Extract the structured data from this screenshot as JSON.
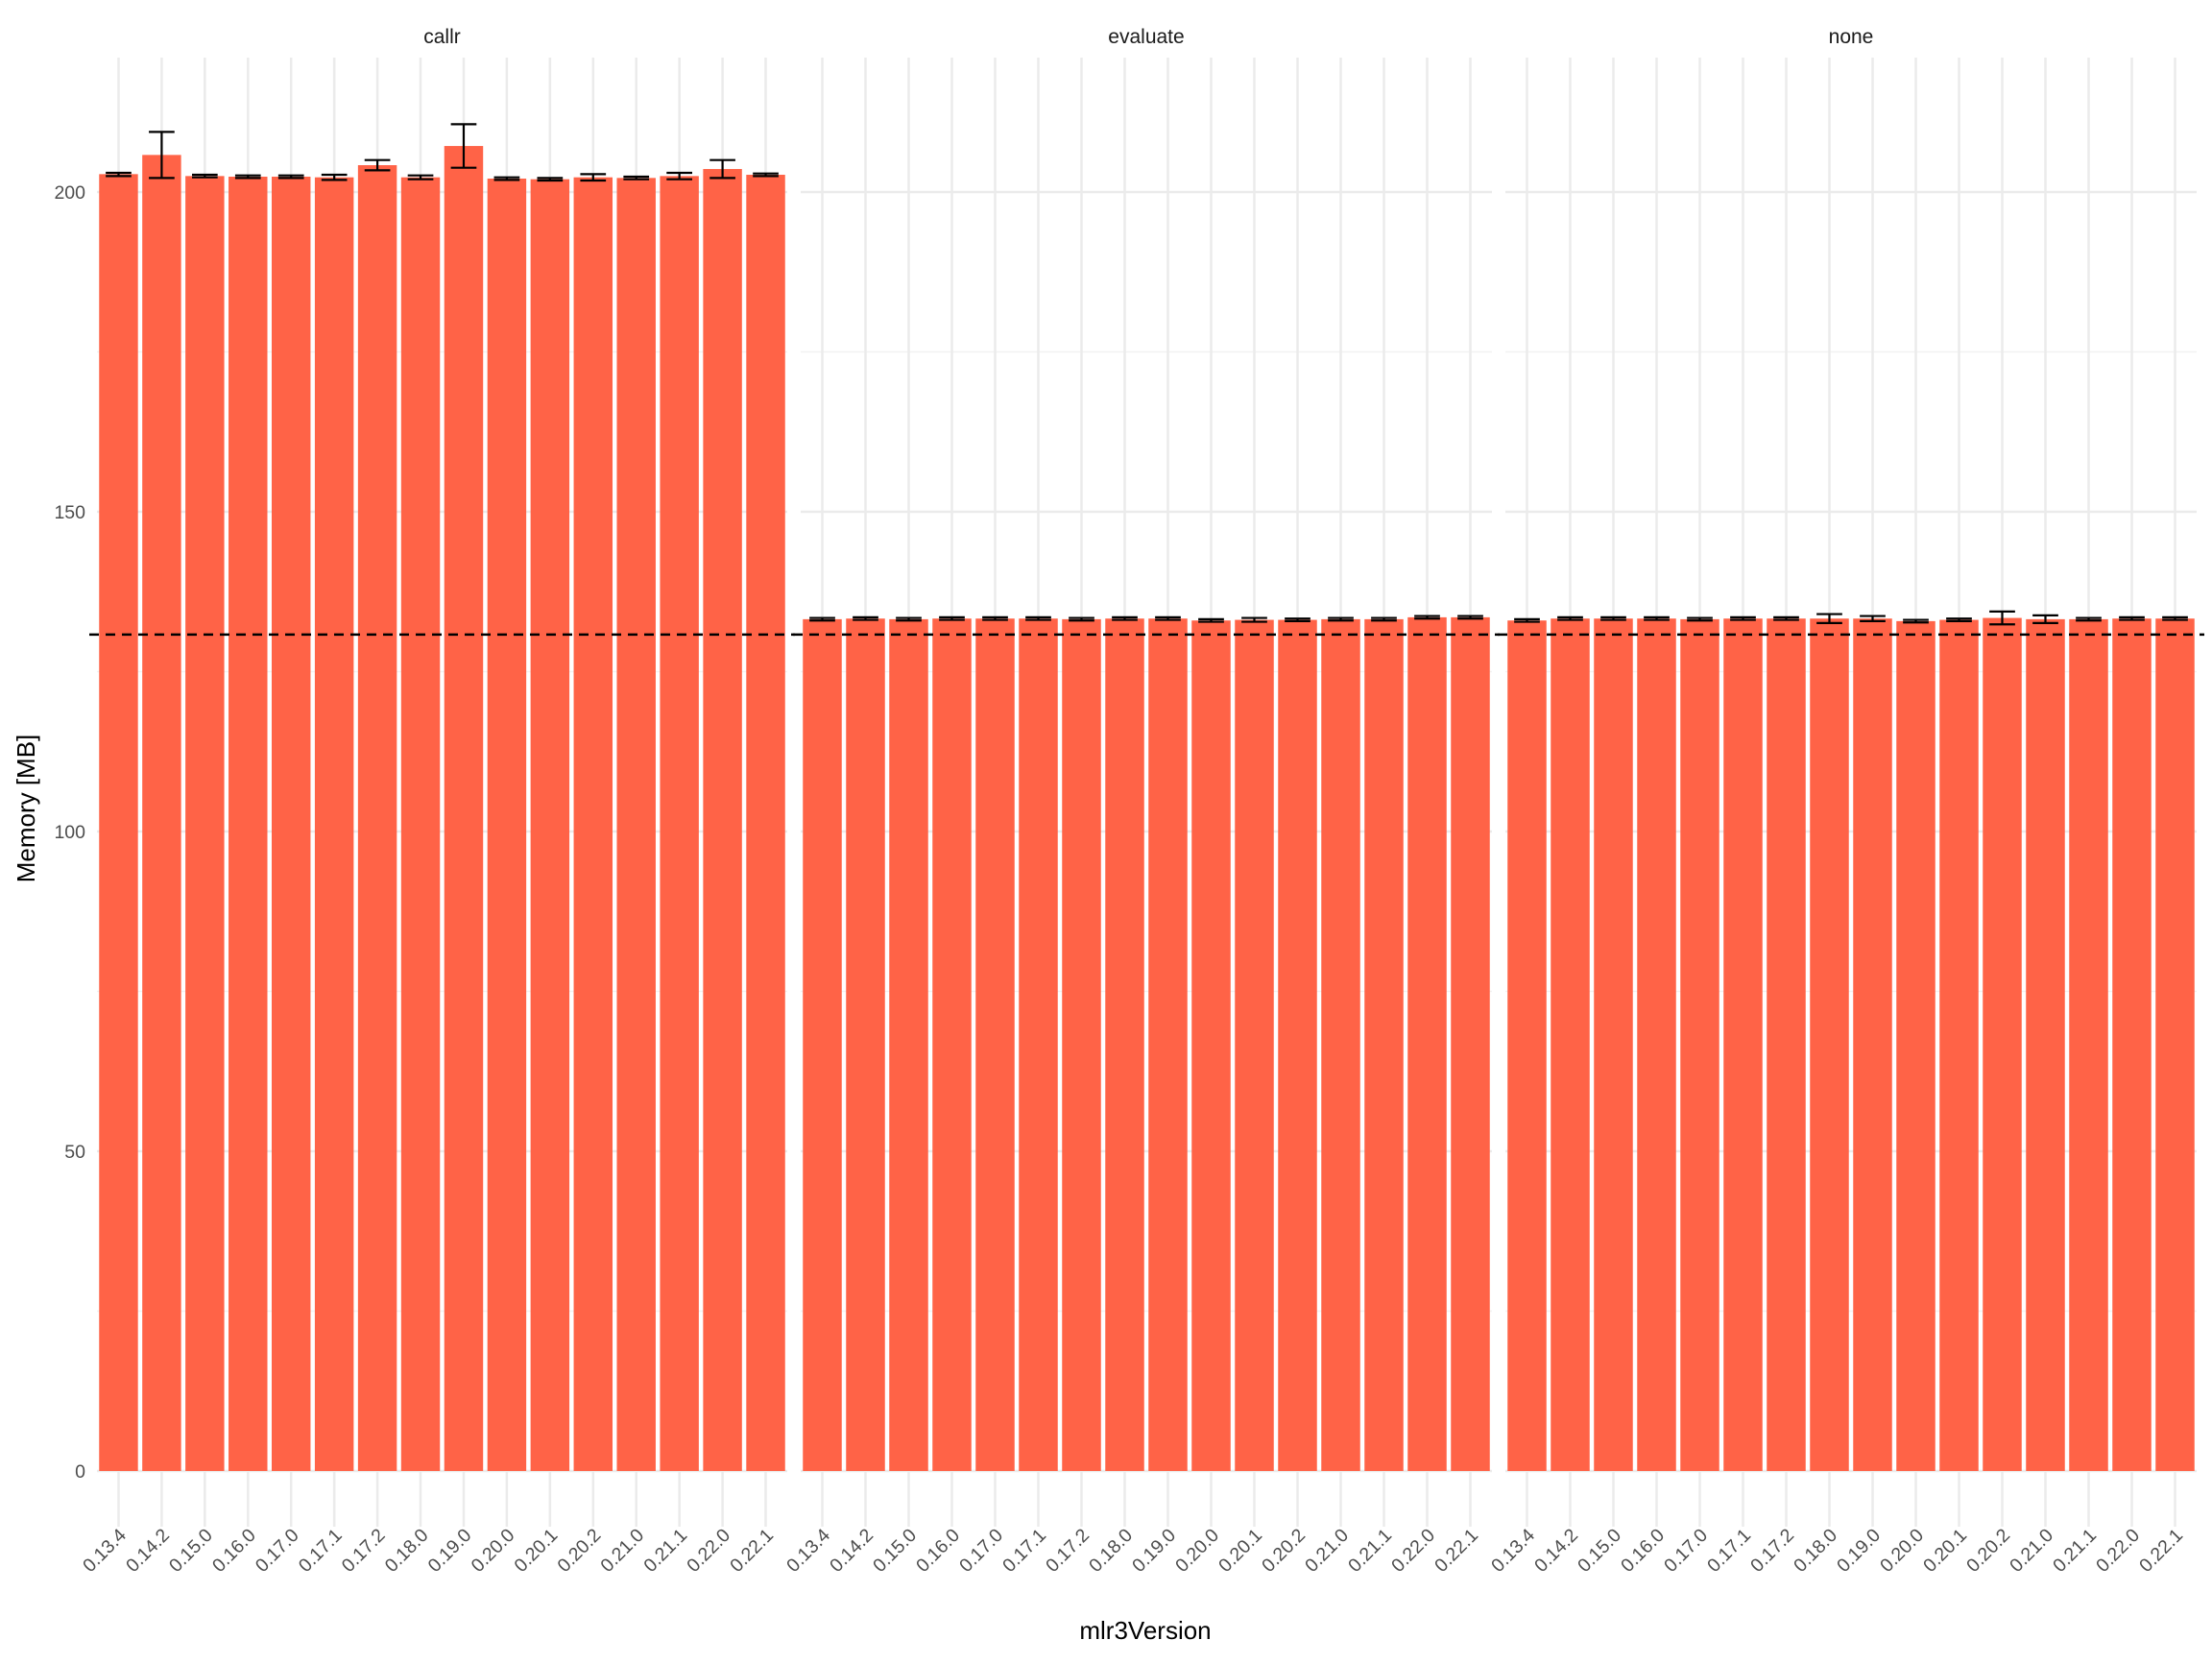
{
  "chart_data": {
    "type": "bar",
    "facet_by": "",
    "xlabel": "mlr3Version",
    "ylabel": "Memory [MB]",
    "ylim": [
      0,
      220
    ],
    "y_ticks": [
      0,
      50,
      100,
      150,
      200
    ],
    "grid": true,
    "bar_color": "#FF6347",
    "error_bar_color": "#000000",
    "reference_line": {
      "value": 130.8,
      "style": "dashed",
      "color": "#000000"
    },
    "categories": [
      "0.13.4",
      "0.14.2",
      "0.15.0",
      "0.16.0",
      "0.17.0",
      "0.17.1",
      "0.17.2",
      "0.18.0",
      "0.19.0",
      "0.20.0",
      "0.20.1",
      "0.20.2",
      "0.21.0",
      "0.21.1",
      "0.22.0",
      "0.22.1"
    ],
    "panels": [
      {
        "label": "callr",
        "values": [
          202.8,
          205.8,
          202.5,
          202.4,
          202.4,
          202.3,
          204.2,
          202.3,
          207.2,
          202.1,
          202.0,
          202.3,
          202.2,
          202.5,
          203.6,
          202.7
        ],
        "error_low": [
          202.5,
          202.2,
          202.3,
          202.2,
          202.2,
          201.9,
          203.4,
          202.0,
          203.8,
          201.9,
          201.8,
          201.8,
          202.0,
          202.0,
          202.2,
          202.5
        ],
        "error_high": [
          203.0,
          209.4,
          202.7,
          202.6,
          202.6,
          202.7,
          205.0,
          202.6,
          210.6,
          202.3,
          202.2,
          202.8,
          202.4,
          203.0,
          205.0,
          202.9
        ]
      },
      {
        "label": "evaluate",
        "values": [
          133.2,
          133.3,
          133.2,
          133.3,
          133.3,
          133.3,
          133.2,
          133.3,
          133.3,
          133.0,
          133.1,
          133.1,
          133.2,
          133.2,
          133.5,
          133.5
        ],
        "error_low": [
          133.0,
          133.1,
          133.0,
          133.1,
          133.1,
          133.1,
          133.0,
          133.1,
          133.1,
          132.8,
          132.8,
          132.9,
          133.0,
          133.0,
          133.3,
          133.3
        ],
        "error_high": [
          133.4,
          133.5,
          133.4,
          133.5,
          133.5,
          133.5,
          133.4,
          133.5,
          133.5,
          133.2,
          133.4,
          133.3,
          133.4,
          133.4,
          133.7,
          133.7
        ]
      },
      {
        "label": "none",
        "values": [
          133.0,
          133.3,
          133.3,
          133.3,
          133.2,
          133.3,
          133.3,
          133.3,
          133.3,
          132.9,
          133.1,
          133.4,
          133.2,
          133.2,
          133.3,
          133.3
        ],
        "error_low": [
          132.8,
          133.1,
          133.1,
          133.1,
          133.0,
          133.1,
          133.1,
          132.6,
          132.9,
          132.7,
          132.9,
          132.4,
          132.6,
          133.0,
          133.1,
          133.1
        ],
        "error_high": [
          133.2,
          133.5,
          133.5,
          133.5,
          133.4,
          133.5,
          133.5,
          134.0,
          133.7,
          133.1,
          133.3,
          134.4,
          133.8,
          133.4,
          133.5,
          133.5
        ]
      }
    ]
  }
}
